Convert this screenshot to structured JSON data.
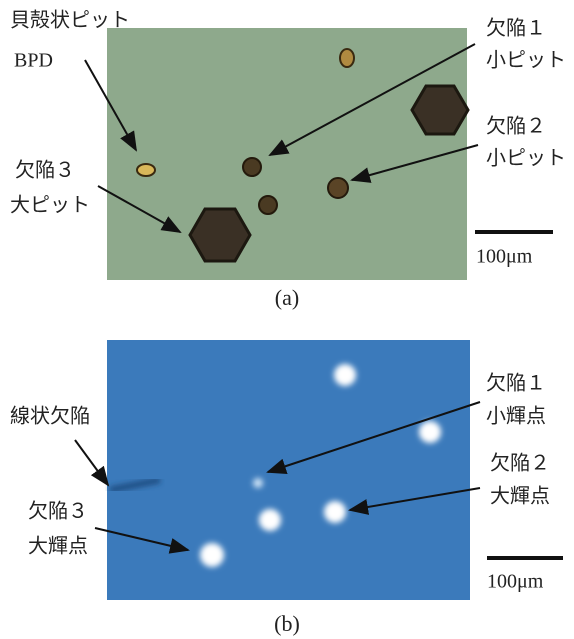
{
  "panels": [
    {
      "labels": [
        {
          "lines": [
            "貝殻状ピット",
            "BPD"
          ]
        },
        {
          "lines": [
            "欠陥３",
            "大ピット"
          ]
        },
        {
          "lines": [
            "欠陥１",
            "小ピット"
          ]
        },
        {
          "lines": [
            "欠陥２",
            "小ピット"
          ]
        }
      ],
      "scale_bar": "100μm",
      "caption": "(a)"
    },
    {
      "labels": [
        {
          "lines": [
            "線状欠陥"
          ]
        },
        {
          "lines": [
            "欠陥３",
            "大輝点"
          ]
        },
        {
          "lines": [
            "欠陥１",
            "小輝点"
          ]
        },
        {
          "lines": [
            "欠陥２",
            "大輝点"
          ]
        }
      ],
      "scale_bar": "100μm",
      "caption": "(b)"
    }
  ]
}
